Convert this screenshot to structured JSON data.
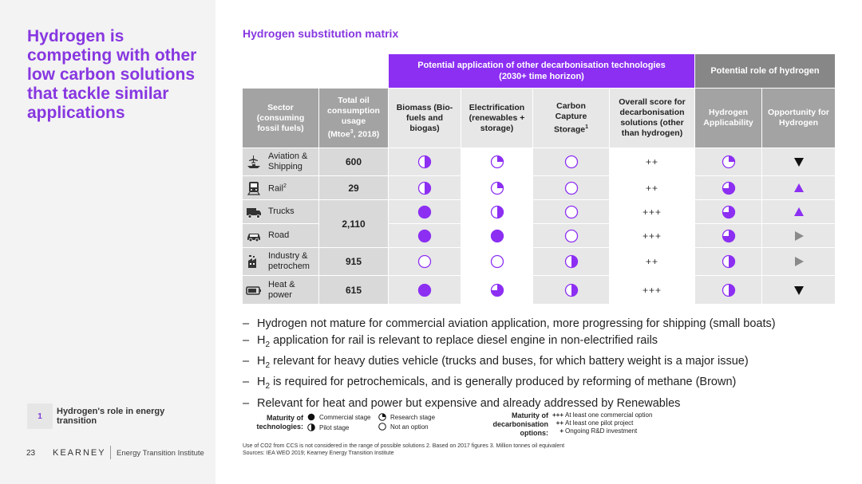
{
  "sidebar": {
    "headline": "Hydrogen is competing with other low carbon solutions that tackle similar applications",
    "section_number": "1",
    "section_title": "Hydrogen's role in energy transition",
    "page_number": "23",
    "brand": "KEARNEY",
    "brand_sub": "Energy Transition Institute"
  },
  "matrix": {
    "title": "Hydrogen substitution matrix",
    "group_header_1": "Potential application of other decarbonisation technologies (2030+ time horizon)",
    "group_header_2": "Potential role of hydrogen",
    "col_sector": "Sector (consuming fossil fuels)",
    "col_oil_a": "Total oil consumption usage",
    "col_oil_b": "(Mtoe",
    "col_oil_sup": "3",
    "col_oil_c": ", 2018)",
    "col_biomass": "Biomass (Bio-fuels and biogas)",
    "col_electrification": "Electrification (renewables + storage)",
    "col_ccs": "Carbon Capture Storage",
    "col_ccs_sup": "1",
    "col_overall": "Overall score for decarbonisation solutions (other than hydrogen)",
    "col_h2_app": "Hydrogen Applicability",
    "col_h2_opp": "Opportunity for Hydrogen",
    "rows": [
      {
        "sector": "Aviation & Shipping",
        "icon": "plane-ship-icon",
        "biomass": 0.5,
        "electrification": 0.25,
        "ccs": 0,
        "overall": "++",
        "h2_applicability": 0.25,
        "opportunity": "down"
      },
      {
        "sector": "Rail",
        "sector_sup": "2",
        "icon": "train-icon",
        "biomass": 0.5,
        "electrification": 0.25,
        "ccs": 0,
        "overall": "++",
        "h2_applicability": 0.75,
        "opportunity": "up"
      },
      {
        "sector": "Trucks",
        "icon": "truck-icon",
        "biomass": 1,
        "electrification": 0.5,
        "ccs": 0,
        "overall": "+++",
        "h2_applicability": 0.75,
        "opportunity": "up"
      },
      {
        "sector": "Road",
        "icon": "car-icon",
        "biomass": 1,
        "electrification": 1,
        "ccs": 0,
        "overall": "+++",
        "h2_applicability": 0.75,
        "opportunity": "right"
      },
      {
        "sector": "Industry & petrochem",
        "icon": "factory-icon",
        "biomass": 0,
        "electrification": 0,
        "ccs": 0.5,
        "overall": "++",
        "h2_applicability": 0.5,
        "opportunity": "right"
      },
      {
        "sector": "Heat & power",
        "icon": "battery-icon",
        "biomass": 1,
        "electrification": 0.75,
        "ccs": 0.5,
        "overall": "+++",
        "h2_applicability": 0.5,
        "opportunity": "down"
      }
    ],
    "oil_values": [
      "600",
      "29",
      "2,110",
      "915",
      "615"
    ]
  },
  "bullets": [
    {
      "dash": "–",
      "pre": "Hydrogen not mature for commercial aviation application, more progressing for shipping (small boats)"
    },
    {
      "dash": "–",
      "pre": "H",
      "sub": "2",
      "post": " application for rail is relevant to replace diesel engine in non-electrified rails"
    },
    {
      "dash": "–",
      "pre": "H",
      "sub": "2",
      "post": " relevant for heavy duties vehicle (trucks and buses, for which battery weight is a major issue)"
    },
    {
      "dash": "–",
      "pre": "H",
      "sub": "2",
      "post": " is required for petrochemicals, and is generally produced by reforming of methane (Brown)"
    },
    {
      "dash": "–",
      "pre": "Relevant for heat and power but expensive and already addressed by Renewables"
    }
  ],
  "legend": {
    "maturity_label": "Maturity of technologies:",
    "commercial": "Commercial stage",
    "pilot": "Pilot stage",
    "research": "Research stage",
    "not_option": "Not an option",
    "decarb_label": "Maturity of decarbonisation options:",
    "decarb_items": [
      {
        "symbol": "+++",
        "text": "At least one commercial option"
      },
      {
        "symbol": "++",
        "text": "At least one pilot project"
      },
      {
        "symbol": "+",
        "text": "Ongoing R&D investment"
      }
    ]
  },
  "footnote": {
    "line1": "Use of CO2 from CCS is not considered in the range of possible solutions 2. Based on 2017 figures 3. Million tonnes oil equivalent",
    "line2": "Sources: IEA WEO 2019; Kearney Energy Transition Institute"
  },
  "colors": {
    "accent": "#8737e0",
    "header_purple": "#8c2ff2",
    "harvey": "#8c2ff2"
  }
}
